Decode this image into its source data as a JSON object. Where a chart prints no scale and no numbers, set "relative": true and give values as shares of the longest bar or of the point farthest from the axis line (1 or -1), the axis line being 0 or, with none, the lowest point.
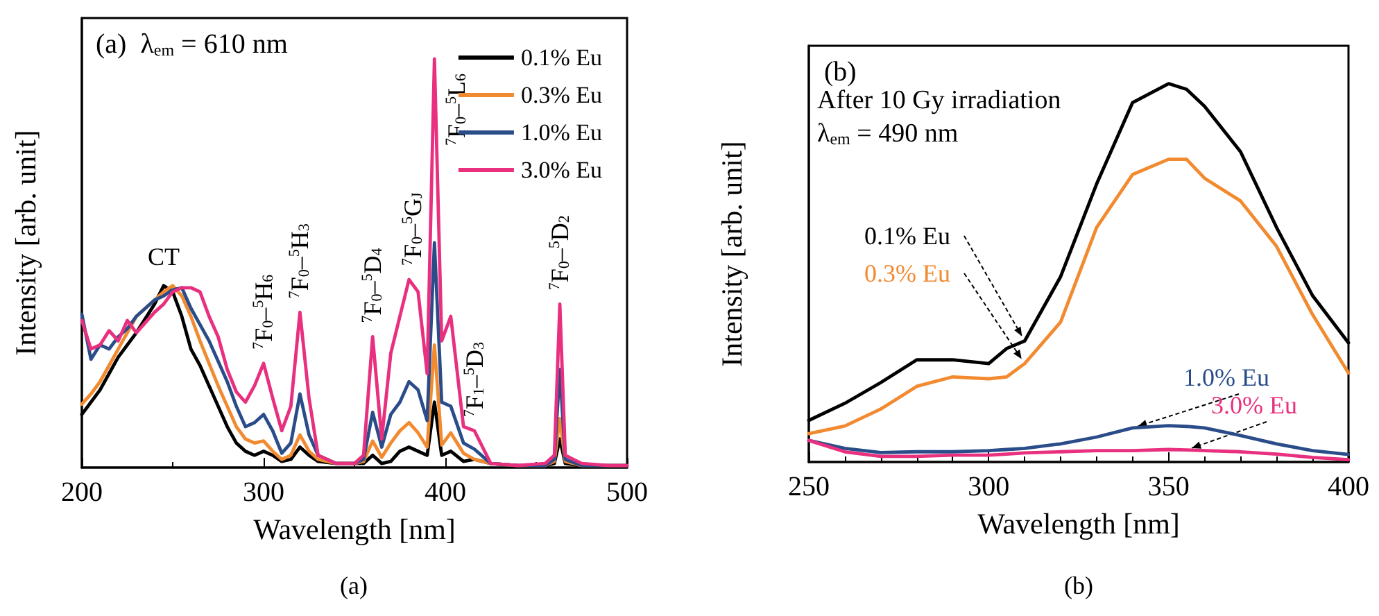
{
  "chart_data": [
    {
      "type": "line",
      "title": "(a)  λ$_{em}$ = 610 nm",
      "xlabel": "Wavelength [nm]",
      "ylabel": "Intensity [arb. unit]",
      "relative": true,
      "x": [
        200,
        205,
        210,
        215,
        220,
        225,
        230,
        240,
        245,
        250,
        255,
        260,
        265,
        270,
        275,
        280,
        285,
        290,
        295,
        300,
        305,
        310,
        315,
        320,
        325,
        330,
        340,
        350,
        355,
        360,
        365,
        370,
        375,
        380,
        385,
        390,
        394,
        398,
        403,
        410,
        416,
        425,
        440,
        455,
        460,
        463,
        466,
        475,
        490,
        500
      ],
      "xlim": [
        200,
        500
      ],
      "xticks": [
        200,
        300,
        400,
        500
      ],
      "legend": "top right",
      "grid": false,
      "series": [
        {
          "name": "0.1% Eu",
          "color": "#000000",
          "values": [
            0.13,
            0.16,
            0.19,
            0.23,
            0.27,
            0.3,
            0.33,
            0.4,
            0.445,
            0.43,
            0.37,
            0.29,
            0.25,
            0.2,
            0.15,
            0.1,
            0.06,
            0.04,
            0.03,
            0.04,
            0.03,
            0.015,
            0.02,
            0.05,
            0.03,
            0.015,
            0.01,
            0.01,
            0.01,
            0.03,
            0.01,
            0.015,
            0.04,
            0.05,
            0.04,
            0.03,
            0.16,
            0.03,
            0.04,
            0.015,
            0.02,
            0.01,
            0.005,
            0.005,
            0.01,
            0.07,
            0.01,
            0.005,
            0.005,
            0.005
          ]
        },
        {
          "name": "0.3% Eu",
          "color": "#f28a30",
          "values": [
            0.155,
            0.18,
            0.21,
            0.25,
            0.29,
            0.33,
            0.37,
            0.41,
            0.43,
            0.445,
            0.42,
            0.37,
            0.31,
            0.255,
            0.2,
            0.15,
            0.1,
            0.07,
            0.06,
            0.065,
            0.04,
            0.02,
            0.03,
            0.08,
            0.04,
            0.02,
            0.01,
            0.01,
            0.015,
            0.065,
            0.025,
            0.06,
            0.09,
            0.11,
            0.085,
            0.05,
            0.3,
            0.055,
            0.085,
            0.035,
            0.02,
            0.01,
            0.005,
            0.005,
            0.015,
            0.12,
            0.015,
            0.005,
            0.005,
            0.005
          ]
        },
        {
          "name": "1.0% Eu",
          "color": "#2a4d8a",
          "values": [
            0.375,
            0.265,
            0.3,
            0.29,
            0.32,
            0.34,
            0.37,
            0.41,
            0.42,
            0.435,
            0.44,
            0.39,
            0.35,
            0.31,
            0.26,
            0.21,
            0.15,
            0.1,
            0.11,
            0.13,
            0.09,
            0.035,
            0.06,
            0.18,
            0.08,
            0.03,
            0.01,
            0.01,
            0.02,
            0.135,
            0.05,
            0.13,
            0.16,
            0.21,
            0.19,
            0.115,
            0.55,
            0.16,
            0.15,
            0.06,
            0.045,
            0.01,
            0.005,
            0.005,
            0.02,
            0.24,
            0.02,
            0.005,
            0.005,
            0.005
          ]
        },
        {
          "name": "3.0% Eu",
          "color": "#e8307f",
          "values": [
            0.36,
            0.29,
            0.3,
            0.335,
            0.31,
            0.36,
            0.33,
            0.38,
            0.4,
            0.43,
            0.44,
            0.44,
            0.43,
            0.37,
            0.32,
            0.24,
            0.185,
            0.16,
            0.2,
            0.255,
            0.17,
            0.09,
            0.15,
            0.38,
            0.17,
            0.03,
            0.01,
            0.01,
            0.03,
            0.32,
            0.07,
            0.28,
            0.37,
            0.46,
            0.43,
            0.23,
            1.0,
            0.31,
            0.37,
            0.1,
            0.09,
            0.01,
            0.005,
            0.01,
            0.03,
            0.4,
            0.03,
            0.01,
            0.005,
            0.005
          ]
        }
      ],
      "annotations": [
        {
          "text": "CT",
          "x": 245,
          "y": 0.445
        },
        {
          "text": "$^{7}$F$_{0}$–$^{5}$H$_{6}$",
          "x": 300,
          "y": 0.255
        },
        {
          "text": "$^{7}$F$_{0}$–$^{5}$H$_{3}$",
          "x": 320,
          "y": 0.38
        },
        {
          "text": "$^{7}$F$_{0}$–$^{5}$D$_{4}$",
          "x": 360,
          "y": 0.32
        },
        {
          "text": "$^{7}$F$_{0}$–$^{5}$G$_{J}$",
          "x": 382,
          "y": 0.46
        },
        {
          "text": "$^{7}$F$_{0}$–$^{5}$L$_{6}$",
          "x": 394,
          "y": 1.0
        },
        {
          "text": "$^{7}$F$_{1}$–$^{5}$D$_{3}$",
          "x": 416,
          "y": 0.09
        },
        {
          "text": "$^{7}$F$_{0}$–$^{5}$D$_{2}$",
          "x": 463,
          "y": 0.4
        },
        "(a)"
      ]
    },
    {
      "type": "line",
      "title": "(b)",
      "xlabel": "Wavelength [nm]",
      "ylabel": "Intensity [arb. unit]",
      "relative": true,
      "x": [
        250,
        260,
        270,
        280,
        290,
        300,
        305,
        310,
        320,
        330,
        340,
        350,
        355,
        360,
        370,
        380,
        390,
        400
      ],
      "xlim": [
        250,
        400
      ],
      "xticks": [
        250,
        300,
        350,
        400
      ],
      "legend": false,
      "grid": false,
      "series": [
        {
          "name": "0.1% Eu",
          "color": "#000000",
          "values": [
            0.11,
            0.155,
            0.21,
            0.27,
            0.27,
            0.26,
            0.3,
            0.32,
            0.49,
            0.735,
            0.95,
            1.0,
            0.985,
            0.94,
            0.82,
            0.62,
            0.44,
            0.315
          ]
        },
        {
          "name": "0.3% Eu",
          "color": "#f28a30",
          "values": [
            0.075,
            0.095,
            0.14,
            0.2,
            0.225,
            0.22,
            0.225,
            0.26,
            0.37,
            0.62,
            0.76,
            0.8,
            0.8,
            0.75,
            0.69,
            0.57,
            0.39,
            0.235
          ]
        },
        {
          "name": "1.0% Eu",
          "color": "#2a4d8a",
          "values": [
            0.057,
            0.036,
            0.025,
            0.027,
            0.027,
            0.03,
            0.033,
            0.036,
            0.048,
            0.066,
            0.09,
            0.096,
            0.094,
            0.09,
            0.07,
            0.048,
            0.03,
            0.02
          ]
        },
        {
          "name": "3.0% Eu",
          "color": "#e8307f",
          "values": [
            0.057,
            0.027,
            0.015,
            0.015,
            0.018,
            0.018,
            0.021,
            0.024,
            0.027,
            0.03,
            0.03,
            0.033,
            0.032,
            0.03,
            0.027,
            0.021,
            0.012,
            0.006
          ]
        }
      ],
      "annotations": [
        "After 10 Gy irradiation",
        "λ$_{em}$ = 490 nm",
        "(b)"
      ]
    }
  ]
}
